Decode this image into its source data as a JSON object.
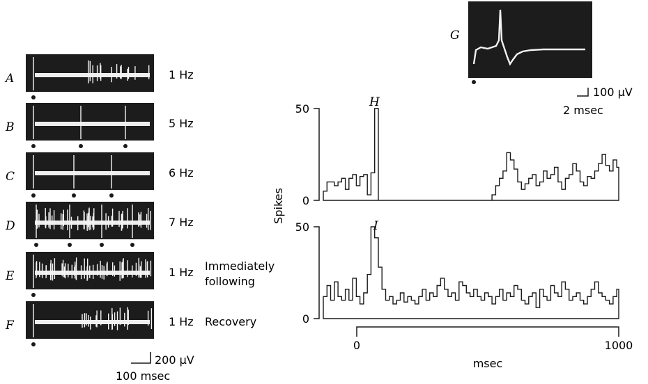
{
  "figure": {
    "traces": [
      {
        "letter": "A",
        "rate": "1 Hz",
        "note": ""
      },
      {
        "letter": "B",
        "rate": "5 Hz",
        "note": ""
      },
      {
        "letter": "C",
        "rate": "6 Hz",
        "note": ""
      },
      {
        "letter": "D",
        "rate": "7 Hz",
        "note": ""
      },
      {
        "letter": "E",
        "rate": "1 Hz",
        "note": "Immediately"
      },
      {
        "letter": "F",
        "rate": "1 Hz",
        "note": "Recovery"
      }
    ],
    "trace_note_extra": "following",
    "scale_left": {
      "amplitude": "200 μV",
      "time": "100 msec"
    },
    "inset": {
      "letter": "G",
      "amplitude": "100 μV",
      "time": "2 msec"
    },
    "hist_H_letter": "H",
    "hist_I_letter": "I",
    "ylabel": "Spikes",
    "xlabel": "msec",
    "y_ticks": [
      "50",
      "0"
    ],
    "x_ticks": [
      "0",
      "1000"
    ]
  },
  "chart_data": [
    {
      "type": "bar",
      "panel": "H",
      "xlabel": "msec",
      "ylabel": "Spikes",
      "ylim": [
        0,
        50
      ],
      "xlim": [
        -120,
        1000
      ],
      "bin_ms": 14,
      "values": [
        5,
        10,
        10,
        8,
        10,
        12,
        6,
        12,
        14,
        8,
        13,
        14,
        3,
        15,
        50,
        0,
        0,
        0,
        0,
        0,
        0,
        0,
        0,
        0,
        0,
        0,
        0,
        0,
        0,
        0,
        0,
        0,
        0,
        0,
        0,
        0,
        0,
        0,
        0,
        0,
        0,
        0,
        0,
        0,
        0,
        0,
        3,
        8,
        12,
        16,
        26,
        22,
        17,
        10,
        6,
        9,
        12,
        14,
        8,
        10,
        16,
        12,
        14,
        18,
        10,
        6,
        12,
        14,
        20,
        16,
        10,
        8,
        13,
        12,
        16,
        20,
        25,
        19,
        16,
        22,
        18,
        14,
        11,
        9,
        12,
        10,
        8,
        12,
        16,
        20,
        16,
        11,
        10,
        12,
        17,
        22,
        19,
        15,
        12,
        9,
        12,
        14,
        10,
        8,
        11,
        14,
        10,
        12,
        12,
        15,
        10,
        8,
        12,
        10,
        14,
        9,
        10,
        12,
        8,
        13,
        16,
        13,
        10,
        9,
        12,
        14,
        10,
        8,
        12,
        16,
        11,
        9,
        12,
        10,
        14,
        12,
        10,
        8,
        12,
        14,
        16,
        10,
        8
      ]
    },
    {
      "type": "bar",
      "panel": "I",
      "xlabel": "msec",
      "ylabel": "Spikes",
      "ylim": [
        0,
        50
      ],
      "xlim": [
        -120,
        1000
      ],
      "bin_ms": 14,
      "values": [
        12,
        18,
        10,
        20,
        12,
        10,
        16,
        10,
        22,
        12,
        8,
        14,
        24,
        50,
        44,
        28,
        16,
        10,
        12,
        8,
        10,
        14,
        9,
        12,
        10,
        8,
        12,
        16,
        10,
        14,
        12,
        18,
        22,
        16,
        12,
        14,
        10,
        20,
        18,
        14,
        12,
        16,
        12,
        10,
        14,
        12,
        8,
        12,
        16,
        10,
        14,
        12,
        18,
        16,
        10,
        8,
        12,
        14,
        6,
        16,
        12,
        10,
        18,
        14,
        12,
        20,
        16,
        10,
        12,
        14,
        10,
        8,
        12,
        16,
        20,
        14,
        12,
        10,
        8,
        12,
        16,
        14,
        10,
        12,
        18,
        16,
        12,
        10,
        14,
        12,
        8,
        16,
        12,
        14,
        10,
        12,
        8,
        10,
        14,
        12,
        16,
        14,
        12,
        10,
        14,
        16,
        12,
        14,
        10,
        12,
        16,
        14,
        12,
        10,
        12,
        8,
        14,
        12,
        16,
        10,
        12,
        14,
        12,
        10,
        16,
        14,
        12,
        10,
        8,
        12,
        14,
        16,
        10,
        12,
        12,
        10,
        14,
        12
      ]
    }
  ]
}
